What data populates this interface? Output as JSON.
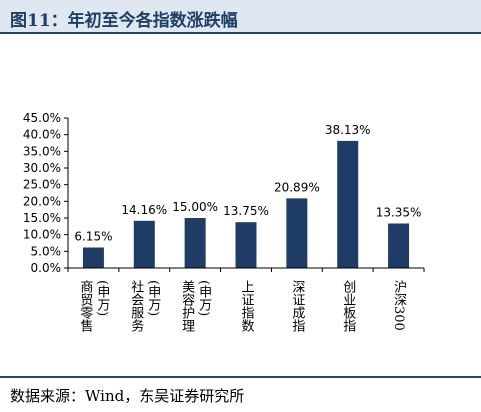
{
  "header": {
    "title": "图11：年初至今各指数涨跌幅"
  },
  "footer": {
    "source": "数据来源：Wind，东吴证券研究所"
  },
  "chart_data": {
    "type": "bar",
    "categories": [
      "商贸零售(申万)",
      "社会服务(申万)",
      "美容护理(申万)",
      "上证指数",
      "深证成指",
      "创业板指",
      "沪深300"
    ],
    "category_lines": [
      [
        "商贸零售",
        "(申万)"
      ],
      [
        "社会服务",
        "(申万)"
      ],
      [
        "美容护理",
        "(申万)"
      ],
      [
        "上证指数"
      ],
      [
        "深证成指"
      ],
      [
        "创业板指"
      ],
      [
        "沪深300"
      ]
    ],
    "values": [
      6.15,
      14.16,
      15.0,
      13.75,
      20.89,
      38.13,
      13.35
    ],
    "data_labels": [
      "6.15%",
      "14.16%",
      "15.00%",
      "13.75%",
      "20.89%",
      "38.13%",
      "13.35%"
    ],
    "yticks": [
      "0.0%",
      "5.0%",
      "10.0%",
      "15.0%",
      "20.0%",
      "25.0%",
      "30.0%",
      "35.0%",
      "40.0%",
      "45.0%"
    ],
    "ylim": [
      0,
      45
    ],
    "grid": false,
    "bar_color": "#1f3c66",
    "title": "",
    "xlabel": "",
    "ylabel": ""
  }
}
